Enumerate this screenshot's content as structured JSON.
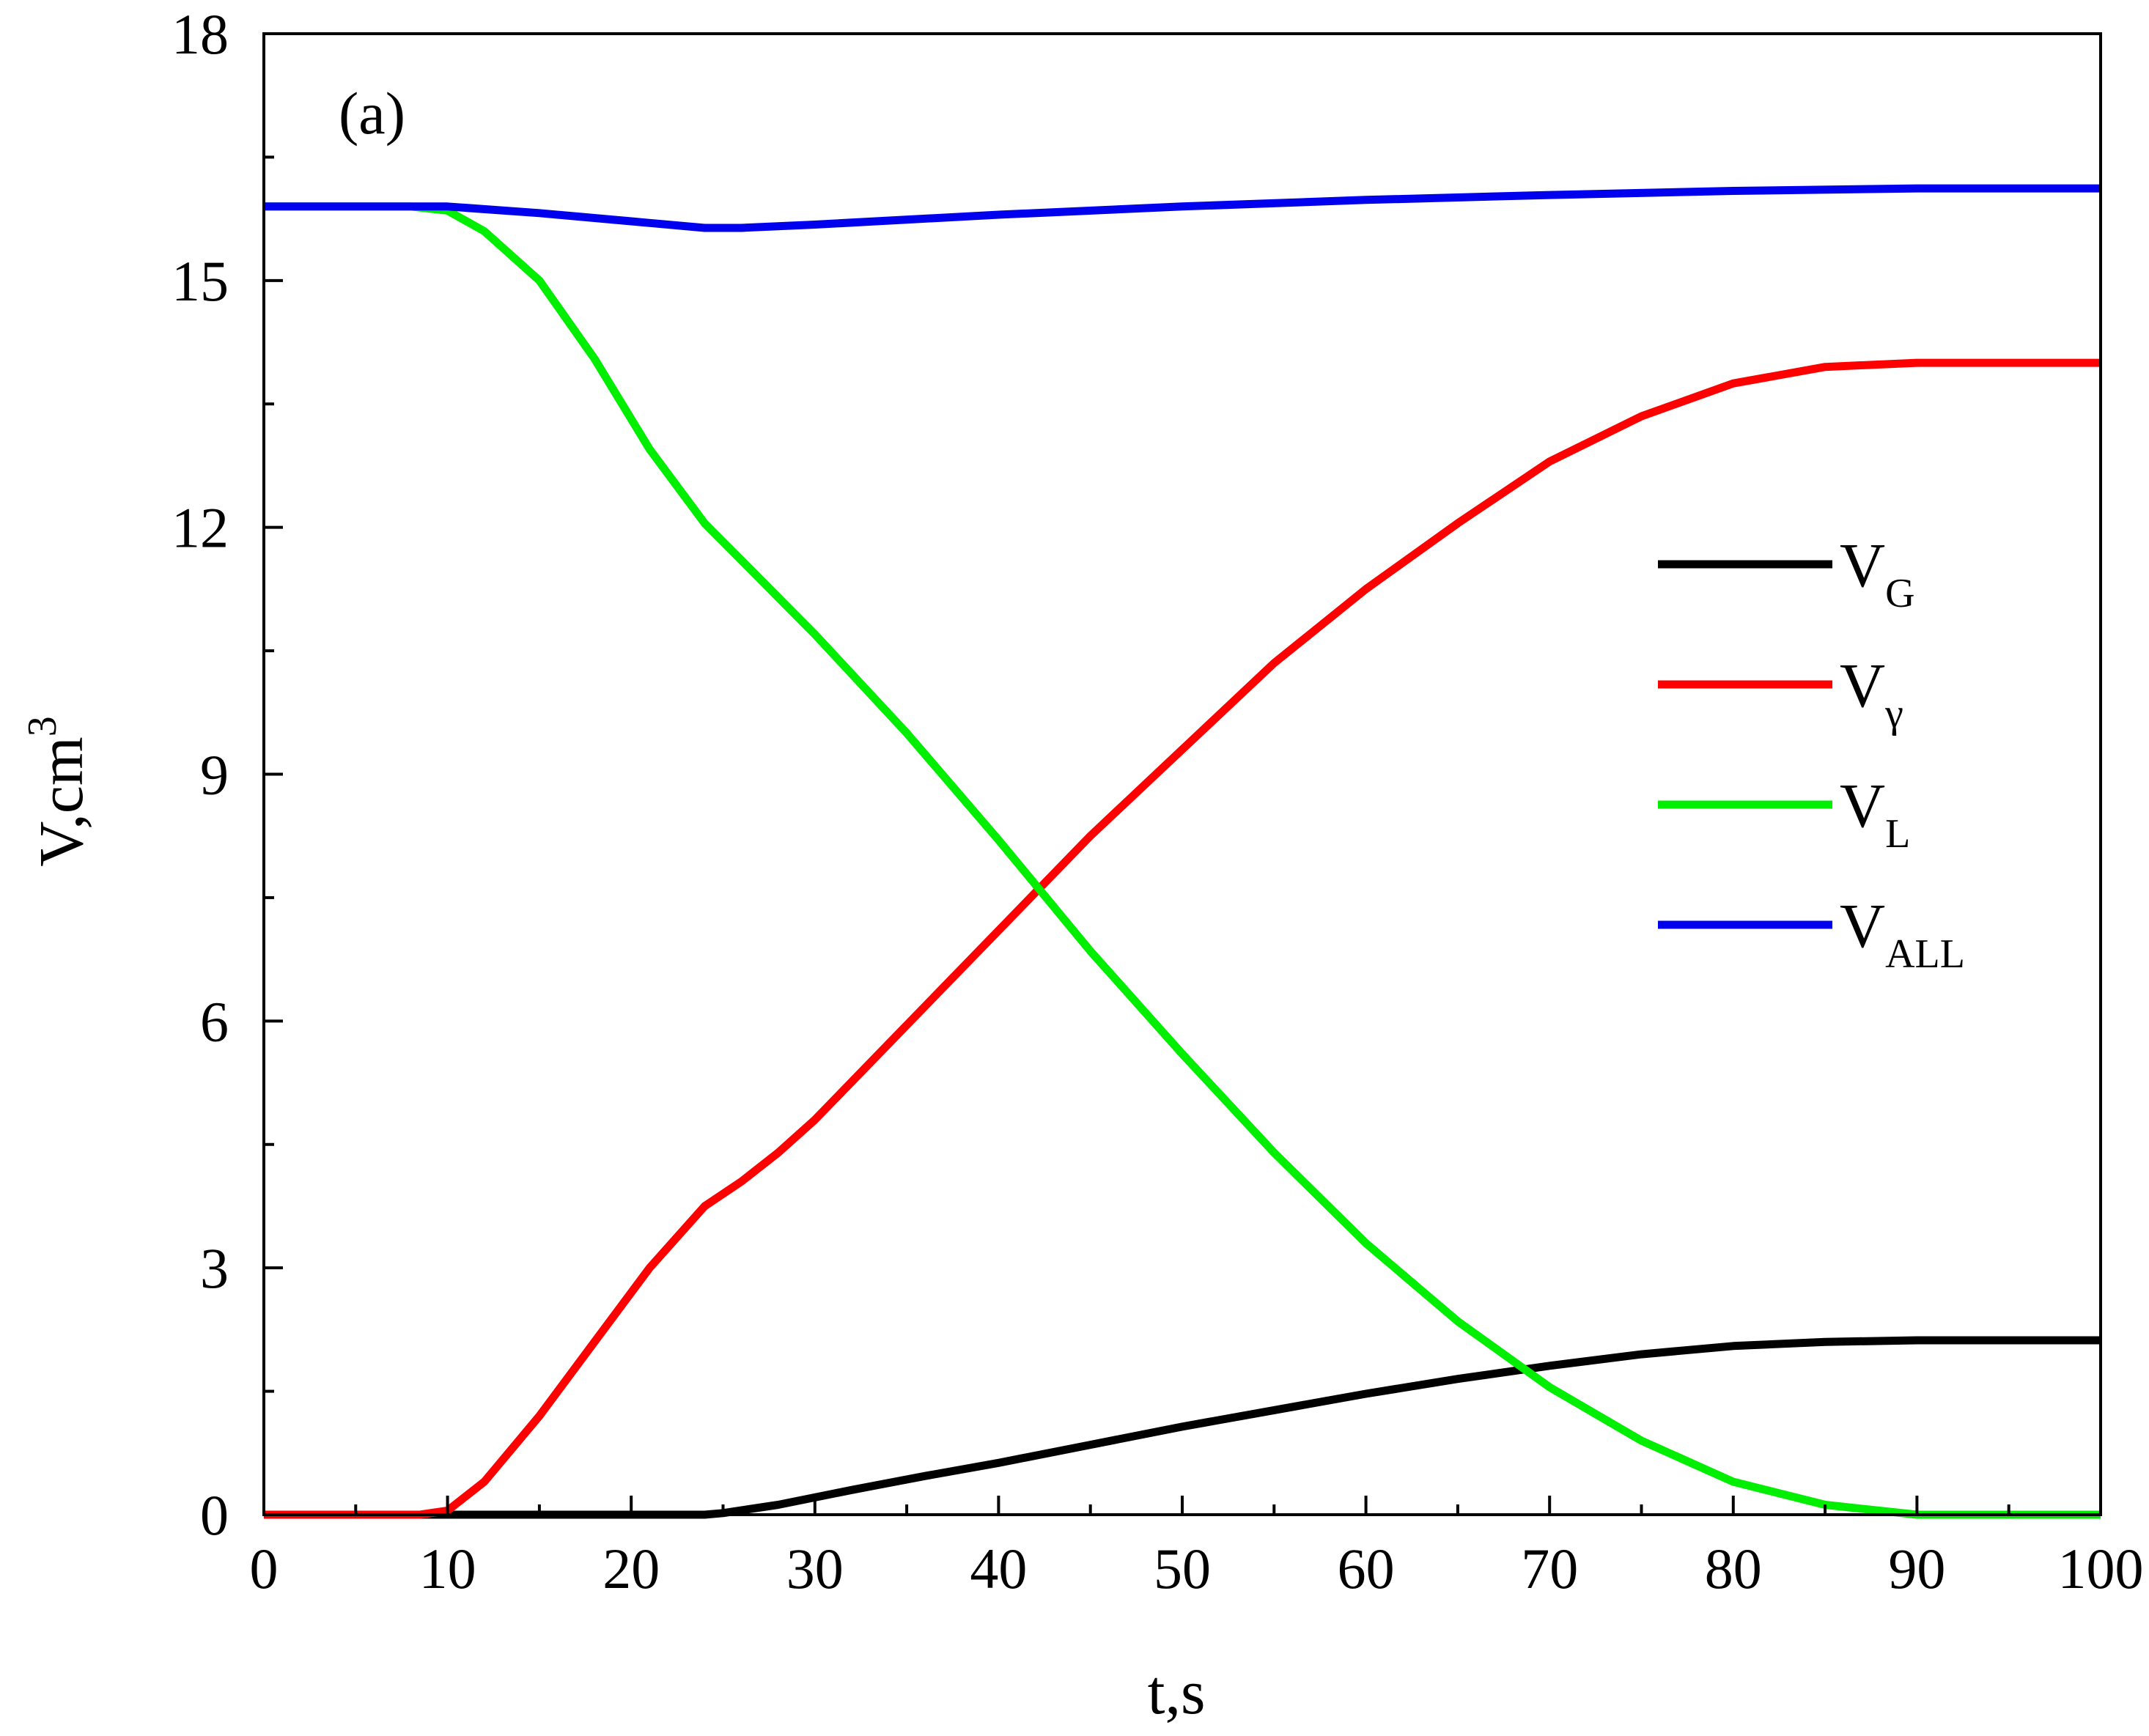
{
  "chart_data": {
    "type": "line",
    "panel_label": "(a)",
    "xlabel": "t,s",
    "ylabel": "V,cm",
    "ylabel_superscript": "3",
    "xlim": [
      0,
      100
    ],
    "ylim": [
      0,
      18
    ],
    "xticks": [
      0,
      10,
      20,
      30,
      40,
      50,
      60,
      70,
      80,
      90,
      100
    ],
    "yticks": [
      0,
      3,
      6,
      9,
      12,
      15,
      18
    ],
    "x_minor_step": 5,
    "y_minor_step": 1.5,
    "grid": false,
    "legend_position": "center-right",
    "series": [
      {
        "name": "V",
        "subscript": "G",
        "color": "#000000",
        "points": [
          [
            0,
            0
          ],
          [
            10,
            0
          ],
          [
            20,
            0
          ],
          [
            24,
            0
          ],
          [
            25,
            0.02
          ],
          [
            28,
            0.12
          ],
          [
            32,
            0.3
          ],
          [
            36,
            0.47
          ],
          [
            40,
            0.63
          ],
          [
            45,
            0.85
          ],
          [
            50,
            1.07
          ],
          [
            55,
            1.27
          ],
          [
            60,
            1.47
          ],
          [
            65,
            1.65
          ],
          [
            70,
            1.81
          ],
          [
            75,
            1.95
          ],
          [
            80,
            2.05
          ],
          [
            85,
            2.1
          ],
          [
            90,
            2.12
          ],
          [
            95,
            2.12
          ],
          [
            100,
            2.12
          ]
        ]
      },
      {
        "name": "V",
        "subscript": "γ",
        "color": "#ff0000",
        "points": [
          [
            0,
            0
          ],
          [
            8.5,
            0
          ],
          [
            10,
            0.05
          ],
          [
            12,
            0.4
          ],
          [
            15,
            1.2
          ],
          [
            18,
            2.1
          ],
          [
            21,
            3
          ],
          [
            24,
            3.75
          ],
          [
            26,
            4.05
          ],
          [
            28,
            4.4
          ],
          [
            30,
            4.8
          ],
          [
            35,
            5.95
          ],
          [
            40,
            7.1
          ],
          [
            45,
            8.25
          ],
          [
            50,
            9.3
          ],
          [
            55,
            10.35
          ],
          [
            60,
            11.25
          ],
          [
            65,
            12.05
          ],
          [
            70,
            12.8
          ],
          [
            75,
            13.35
          ],
          [
            80,
            13.75
          ],
          [
            85,
            13.95
          ],
          [
            90,
            14
          ],
          [
            95,
            14
          ],
          [
            100,
            14
          ]
        ]
      },
      {
        "name": "V",
        "subscript": "L",
        "color": "#00ee00",
        "points": [
          [
            0,
            15.9
          ],
          [
            8,
            15.9
          ],
          [
            10,
            15.85
          ],
          [
            12,
            15.6
          ],
          [
            15,
            15
          ],
          [
            18,
            14.05
          ],
          [
            21,
            12.95
          ],
          [
            24,
            12.05
          ],
          [
            26,
            11.6
          ],
          [
            28,
            11.15
          ],
          [
            30,
            10.7
          ],
          [
            35,
            9.5
          ],
          [
            40,
            8.2
          ],
          [
            45,
            6.85
          ],
          [
            50,
            5.6
          ],
          [
            55,
            4.4
          ],
          [
            60,
            3.3
          ],
          [
            65,
            2.35
          ],
          [
            70,
            1.55
          ],
          [
            75,
            0.9
          ],
          [
            80,
            0.4
          ],
          [
            85,
            0.12
          ],
          [
            90,
            0
          ],
          [
            95,
            0
          ],
          [
            100,
            0
          ]
        ]
      },
      {
        "name": "V",
        "subscript": "ALL",
        "color": "#0000ee",
        "points": [
          [
            0,
            15.9
          ],
          [
            10,
            15.9
          ],
          [
            15,
            15.82
          ],
          [
            20,
            15.72
          ],
          [
            24,
            15.64
          ],
          [
            26,
            15.64
          ],
          [
            30,
            15.68
          ],
          [
            40,
            15.8
          ],
          [
            50,
            15.9
          ],
          [
            60,
            15.98
          ],
          [
            70,
            16.04
          ],
          [
            80,
            16.09
          ],
          [
            90,
            16.12
          ],
          [
            100,
            16.12
          ]
        ]
      }
    ]
  }
}
